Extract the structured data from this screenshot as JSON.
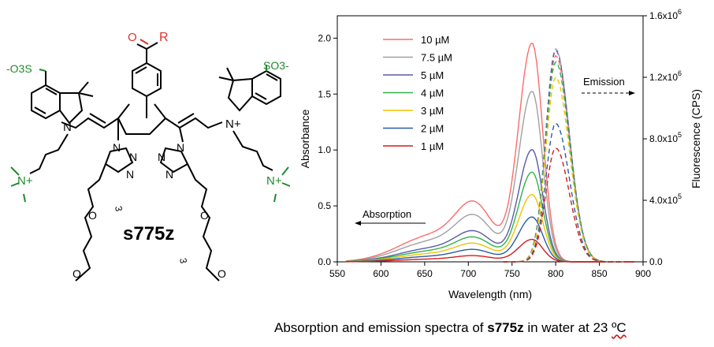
{
  "structure": {
    "compound_name": "s775z",
    "r_group": "R",
    "sulfonate_left": "-O3S",
    "sulfonate_right": "SO3-",
    "ammonium": "N+",
    "indolium": "N+",
    "n_atom": "N",
    "o_atom": "O",
    "repeat_index": "3",
    "colors": {
      "green": "#1f8a2e",
      "red": "#e0322b",
      "black": "#000000"
    }
  },
  "caption": {
    "prefix": "Absorption and emission spectra of ",
    "compound": "s775z",
    "suffix": " in water at 23 ",
    "unit": "ºC"
  },
  "chart_data": {
    "type": "line",
    "xlabel": "Wavelength (nm)",
    "ylabel": "Absorbance",
    "y2label": "Fluorescence (CPS)",
    "xlim": [
      550,
      900
    ],
    "ylim": [
      0,
      2.2
    ],
    "y2lim": [
      0,
      1600000
    ],
    "xticks": [
      "550",
      "600",
      "650",
      "700",
      "750",
      "800",
      "850",
      "900"
    ],
    "yticks": [
      "0.0",
      "0.5",
      "1.0",
      "1.5",
      "2.0"
    ],
    "y2ticks": [
      "0.0",
      "4.0x10",
      "8.0x10",
      "1.2x10",
      "1.6x10"
    ],
    "y2tick_exponents": [
      "",
      "5",
      "5",
      "6",
      "6"
    ],
    "legend_position": "top-left",
    "annotations": {
      "absorption": "Absorption",
      "emission": "Emission"
    },
    "series": [
      {
        "name": "10 µM",
        "color": "#ff6a6a",
        "abs_peak": 1.95,
        "em_peak": 1340000
      },
      {
        "name": "7.5 µM",
        "color": "#a0a0a0",
        "abs_peak": 1.52,
        "em_peak": 1385000
      },
      {
        "name": "5 µM",
        "color": "#5a5aa6",
        "abs_peak": 1.0,
        "em_peak": 1375000
      },
      {
        "name": "4 µM",
        "color": "#2fb24a",
        "abs_peak": 0.8,
        "em_peak": 1300000
      },
      {
        "name": "3 µM",
        "color": "#f2c200",
        "abs_peak": 0.6,
        "em_peak": 1200000
      },
      {
        "name": "2 µM",
        "color": "#2a5ca8",
        "abs_peak": 0.4,
        "em_peak": 900000
      },
      {
        "name": "1 µM",
        "color": "#d41c1c",
        "abs_peak": 0.2,
        "em_peak": 740000
      }
    ],
    "abs_peak_wavelength": 773,
    "abs_shoulder_wavelength": 708,
    "em_peak_wavelength": 800
  }
}
